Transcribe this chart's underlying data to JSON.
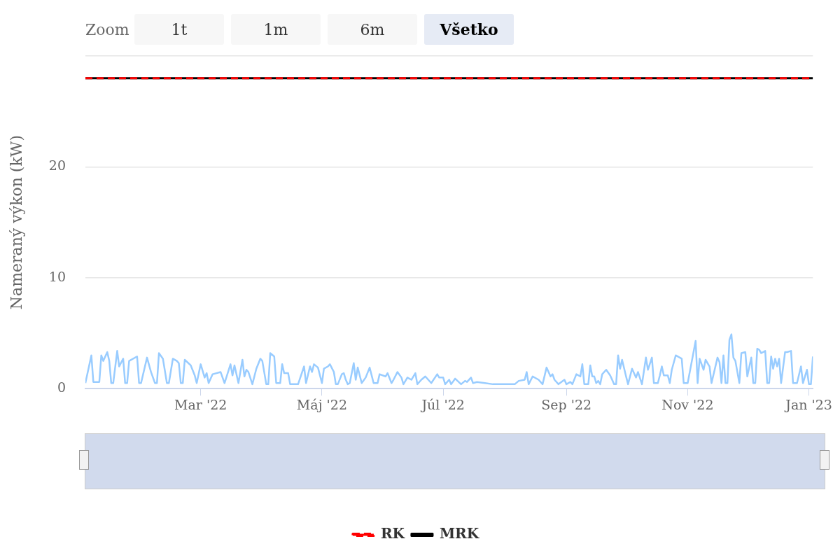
{
  "chart_data": {
    "type": "line",
    "ylabel": "Nameraný výkon (kW)",
    "annotations": [
      "Zoom",
      "1t",
      "1m",
      "6m",
      "Všetko"
    ],
    "xlim": [
      "2022-01-02",
      "2023-01-03"
    ],
    "xticks": [
      {
        "value": "2022-03-01",
        "label": "Mar '22"
      },
      {
        "value": "2022-05-01",
        "label": "Máj '22"
      },
      {
        "value": "2022-07-01",
        "label": "Júl '22"
      },
      {
        "value": "2022-09-01",
        "label": "Sep '22"
      },
      {
        "value": "2022-11-01",
        "label": "Nov '22"
      },
      {
        "value": "2023-01-01",
        "label": "Jan '23"
      }
    ],
    "ylim": [
      0,
      30
    ],
    "yticks": [
      0,
      10,
      20,
      {
        "value": 30,
        "label": null
      }
    ],
    "grid": "y",
    "legend": "bottom",
    "marker": "none",
    "series": [
      {
        "color": "#99ccff",
        "line_style": "solid",
        "x": [
          "2022-01-02",
          "2022-01-05",
          "2022-01-06",
          "2022-01-09",
          "2022-01-10",
          "2022-01-11",
          "2022-01-13",
          "2022-01-14",
          "2022-01-15",
          "2022-01-16",
          "2022-01-18",
          "2022-01-19",
          "2022-01-21",
          "2022-01-22",
          "2022-01-23",
          "2022-01-24",
          "2022-01-28",
          "2022-01-29",
          "2022-01-30",
          "2022-02-02",
          "2022-02-04",
          "2022-02-06",
          "2022-02-07",
          "2022-02-08",
          "2022-02-10",
          "2022-02-12",
          "2022-02-13",
          "2022-02-15",
          "2022-02-17",
          "2022-02-18",
          "2022-02-19",
          "2022-02-20",
          "2022-02-21",
          "2022-02-24",
          "2022-02-26",
          "2022-02-27",
          "2022-03-01",
          "2022-03-03",
          "2022-03-04",
          "2022-03-05",
          "2022-03-07",
          "2022-03-11",
          "2022-03-13",
          "2022-03-16",
          "2022-03-17",
          "2022-03-18",
          "2022-03-20",
          "2022-03-22",
          "2022-03-23",
          "2022-03-24",
          "2022-03-25",
          "2022-03-27",
          "2022-03-29",
          "2022-03-31",
          "2022-04-01",
          "2022-04-03",
          "2022-04-04",
          "2022-04-05",
          "2022-04-07",
          "2022-04-08",
          "2022-04-10",
          "2022-04-11",
          "2022-04-12",
          "2022-04-14",
          "2022-04-15",
          "2022-04-19",
          "2022-04-22",
          "2022-04-23",
          "2022-04-25",
          "2022-04-26",
          "2022-04-27",
          "2022-04-29",
          "2022-05-01",
          "2022-05-02",
          "2022-05-04",
          "2022-05-05",
          "2022-05-07",
          "2022-05-08",
          "2022-05-09",
          "2022-05-11",
          "2022-05-12",
          "2022-05-13",
          "2022-05-14",
          "2022-05-15",
          "2022-05-17",
          "2022-05-18",
          "2022-05-19",
          "2022-05-21",
          "2022-05-23",
          "2022-05-25",
          "2022-05-27",
          "2022-05-29",
          "2022-05-30",
          "2022-06-02",
          "2022-06-03",
          "2022-06-05",
          "2022-06-06",
          "2022-06-08",
          "2022-06-10",
          "2022-06-11",
          "2022-06-13",
          "2022-06-15",
          "2022-06-17",
          "2022-06-18",
          "2022-06-20",
          "2022-06-22",
          "2022-06-25",
          "2022-06-28",
          "2022-06-29",
          "2022-07-01",
          "2022-07-02",
          "2022-07-04",
          "2022-07-05",
          "2022-07-07",
          "2022-07-10",
          "2022-07-12",
          "2022-07-13",
          "2022-07-15",
          "2022-07-16",
          "2022-07-18",
          "2022-07-22",
          "2022-07-26",
          "2022-08-06",
          "2022-08-08",
          "2022-08-11",
          "2022-08-12",
          "2022-08-13",
          "2022-08-15",
          "2022-08-18",
          "2022-08-20",
          "2022-08-22",
          "2022-08-24",
          "2022-08-25",
          "2022-08-26",
          "2022-08-28",
          "2022-08-31",
          "2022-09-01",
          "2022-09-03",
          "2022-09-04",
          "2022-09-06",
          "2022-09-08",
          "2022-09-09",
          "2022-09-10",
          "2022-09-12",
          "2022-09-13",
          "2022-09-14",
          "2022-09-15",
          "2022-09-16",
          "2022-09-17",
          "2022-09-18",
          "2022-09-19",
          "2022-09-21",
          "2022-09-23",
          "2022-09-25",
          "2022-09-26",
          "2022-09-27",
          "2022-09-28",
          "2022-09-29",
          "2022-10-01",
          "2022-10-02",
          "2022-10-04",
          "2022-10-06",
          "2022-10-07",
          "2022-10-09",
          "2022-10-11",
          "2022-10-12",
          "2022-10-14",
          "2022-10-15",
          "2022-10-17",
          "2022-10-18",
          "2022-10-19",
          "2022-10-20",
          "2022-10-22",
          "2022-10-23",
          "2022-10-24",
          "2022-10-26",
          "2022-10-29",
          "2022-10-30",
          "2022-11-01",
          "2022-11-05",
          "2022-11-06",
          "2022-11-07",
          "2022-11-09",
          "2022-11-10",
          "2022-11-12",
          "2022-11-13",
          "2022-11-16",
          "2022-11-17",
          "2022-11-18",
          "2022-11-19",
          "2022-11-20",
          "2022-11-21",
          "2022-11-22",
          "2022-11-23",
          "2022-11-24",
          "2022-11-25",
          "2022-11-27",
          "2022-11-28",
          "2022-11-30",
          "2022-12-01",
          "2022-12-03",
          "2022-12-04",
          "2022-12-05",
          "2022-12-06",
          "2022-12-07",
          "2022-12-08",
          "2022-12-10",
          "2022-12-11",
          "2022-12-12",
          "2022-12-13",
          "2022-12-14",
          "2022-12-15",
          "2022-12-16",
          "2022-12-17",
          "2022-12-18",
          "2022-12-20",
          "2022-12-21",
          "2022-12-23",
          "2022-12-24",
          "2022-12-26",
          "2022-12-28",
          "2022-12-29",
          "2022-12-31",
          "2023-01-01",
          "2023-01-02",
          "2023-01-03"
        ],
        "values": [
          0.5,
          3.0,
          0.6,
          0.6,
          3.0,
          2.5,
          3.3,
          2.5,
          0.5,
          0.5,
          3.4,
          2.0,
          2.7,
          0.5,
          0.5,
          2.5,
          2.9,
          0.5,
          0.5,
          2.8,
          1.5,
          0.5,
          0.5,
          3.2,
          2.7,
          0.5,
          0.5,
          2.7,
          2.5,
          2.3,
          0.5,
          0.5,
          2.6,
          2.1,
          1.2,
          0.5,
          2.2,
          1.0,
          1.4,
          0.5,
          1.3,
          1.5,
          0.5,
          2.2,
          1.2,
          2.1,
          0.5,
          2.6,
          1.1,
          1.7,
          1.5,
          0.4,
          1.8,
          2.7,
          2.5,
          0.4,
          0.4,
          3.2,
          2.9,
          0.5,
          0.5,
          2.2,
          1.4,
          1.4,
          0.4,
          0.4,
          2.0,
          0.5,
          2.0,
          1.5,
          2.2,
          1.9,
          0.5,
          1.8,
          2.0,
          2.2,
          1.5,
          0.4,
          0.4,
          1.3,
          1.4,
          0.8,
          0.4,
          0.5,
          2.3,
          0.8,
          1.9,
          0.5,
          1.0,
          1.9,
          0.5,
          0.5,
          1.3,
          1.1,
          1.4,
          0.5,
          0.8,
          1.5,
          1.0,
          0.4,
          1.0,
          0.8,
          1.4,
          0.4,
          0.8,
          1.1,
          0.5,
          1.3,
          1.0,
          1.0,
          0.4,
          0.8,
          0.4,
          0.9,
          0.4,
          0.7,
          0.6,
          1.0,
          0.5,
          0.6,
          0.5,
          0.4,
          0.4,
          0.7,
          0.8,
          1.5,
          0.4,
          1.1,
          0.8,
          0.4,
          1.9,
          1.1,
          1.3,
          0.8,
          0.4,
          0.8,
          0.4,
          0.6,
          0.4,
          1.3,
          1.1,
          2.2,
          0.4,
          0.4,
          2.1,
          1.1,
          1.1,
          0.5,
          0.7,
          0.4,
          1.3,
          1.7,
          1.2,
          0.4,
          0.4,
          3.0,
          1.8,
          2.6,
          1.1,
          0.4,
          1.8,
          1.0,
          1.5,
          0.4,
          2.8,
          1.7,
          2.8,
          0.5,
          0.5,
          1.2,
          2.0,
          1.2,
          1.2,
          0.5,
          1.7,
          3.0,
          2.7,
          0.5,
          0.5,
          4.3,
          0.5,
          2.7,
          1.7,
          2.6,
          2.0,
          0.5,
          2.8,
          2.4,
          0.5,
          3.0,
          0.5,
          0.5,
          4.4,
          4.9,
          2.8,
          2.5,
          0.5,
          3.2,
          3.3,
          1.1,
          2.8,
          0.5,
          0.5,
          3.6,
          3.5,
          3.2,
          3.4,
          0.5,
          0.5,
          2.9,
          1.8,
          2.7,
          2.0,
          2.7,
          0.5,
          3.3,
          3.3,
          3.4,
          0.5,
          0.5,
          2.0,
          0.5,
          1.7,
          0.4,
          0.4,
          2.9
        ]
      },
      {
        "name": "RK",
        "color": "#ff0000",
        "line_style": "dashed",
        "x": [
          "2022-01-02",
          "2023-01-03"
        ],
        "values": [
          28,
          28
        ]
      },
      {
        "name": "MRK",
        "color": "#000000",
        "line_style": "solid",
        "x": [
          "2022-01-02",
          "2023-01-03"
        ],
        "values": [
          28,
          28
        ]
      }
    ]
  }
}
